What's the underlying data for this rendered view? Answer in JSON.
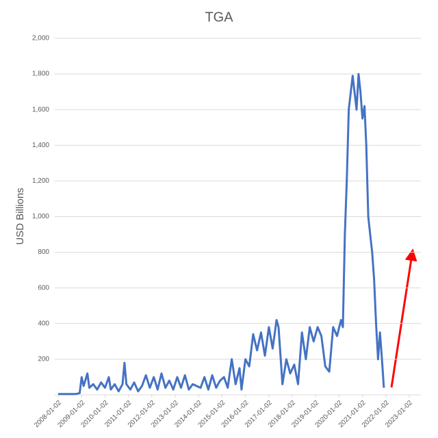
{
  "chart_data": {
    "type": "line",
    "title": "TGA",
    "y_label": "USD Billions",
    "x": [
      "2008-01-02",
      "2008-06-02",
      "2008-10-02",
      "2008-12-02",
      "2009-01-02",
      "2009-02-02",
      "2009-04-02",
      "2009-05-02",
      "2009-07-02",
      "2009-09-02",
      "2009-11-02",
      "2010-01-02",
      "2010-03-02",
      "2010-04-02",
      "2010-06-02",
      "2010-08-02",
      "2010-10-02",
      "2010-11-02",
      "2010-12-02",
      "2011-02-02",
      "2011-04-02",
      "2011-06-02",
      "2011-08-02",
      "2011-10-02",
      "2011-12-02",
      "2012-02-02",
      "2012-04-02",
      "2012-06-02",
      "2012-08-02",
      "2012-10-02",
      "2012-12-02",
      "2013-02-02",
      "2013-04-02",
      "2013-06-02",
      "2013-08-02",
      "2013-10-02",
      "2013-12-02",
      "2014-02-02",
      "2014-04-02",
      "2014-06-02",
      "2014-08-02",
      "2014-10-02",
      "2014-12-02",
      "2015-02-02",
      "2015-04-02",
      "2015-06-02",
      "2015-08-02",
      "2015-10-02",
      "2015-11-02",
      "2016-01-02",
      "2016-03-02",
      "2016-05-02",
      "2016-07-02",
      "2016-09-02",
      "2016-11-02",
      "2017-01-02",
      "2017-03-02",
      "2017-05-02",
      "2017-06-02",
      "2017-08-02",
      "2017-10-02",
      "2017-12-02",
      "2018-02-02",
      "2018-04-02",
      "2018-06-02",
      "2018-08-02",
      "2018-10-02",
      "2018-12-02",
      "2019-02-02",
      "2019-04-02",
      "2019-06-02",
      "2019-08-02",
      "2019-10-02",
      "2019-12-02",
      "2020-02-02",
      "2020-03-02",
      "2020-04-02",
      "2020-05-02",
      "2020-06-02",
      "2020-08-02",
      "2020-10-02",
      "2020-11-02",
      "2020-12-02",
      "2021-01-02",
      "2021-02-02",
      "2021-03-02",
      "2021-04-02",
      "2021-05-02",
      "2021-06-02",
      "2021-07-02",
      "2021-08-02",
      "2021-09-02",
      "2021-10-02",
      "2021-11-02",
      "2021-12-02"
    ],
    "series": [
      {
        "name": "TGA",
        "color": "#4472c4",
        "values": [
          5,
          5,
          5,
          10,
          100,
          50,
          120,
          40,
          60,
          30,
          70,
          40,
          100,
          30,
          60,
          20,
          60,
          180,
          60,
          30,
          70,
          20,
          50,
          110,
          40,
          100,
          30,
          120,
          40,
          80,
          30,
          100,
          40,
          110,
          30,
          60,
          50,
          40,
          100,
          30,
          110,
          40,
          80,
          100,
          40,
          200,
          60,
          150,
          30,
          200,
          160,
          340,
          250,
          350,
          220,
          380,
          260,
          420,
          380,
          60,
          200,
          120,
          170,
          60,
          350,
          200,
          380,
          300,
          380,
          330,
          160,
          130,
          380,
          330,
          420,
          380,
          900,
          1200,
          1600,
          1790,
          1600,
          1800,
          1700,
          1550,
          1620,
          1400,
          1000,
          900,
          800,
          650,
          400,
          200,
          350,
          200,
          40
        ]
      }
    ],
    "xlim": [
      "2008-01-02",
      "2023-01-02"
    ],
    "xticks": [
      "2008-01-02",
      "2009-01-02",
      "2010-01-02",
      "2011-01-02",
      "2012-01-02",
      "2013-01-02",
      "2014-01-02",
      "2015-01-02",
      "2016-01-02",
      "2017-01-02",
      "2018-01-02",
      "2019-01-02",
      "2020-01-02",
      "2021-01-02",
      "2022-01-02",
      "2023-01-02"
    ],
    "ylim": [
      0,
      2000
    ],
    "yticks": [
      200,
      400,
      600,
      800,
      {
        "value": 1000,
        "label": "1,000"
      },
      {
        "value": 1200,
        "label": "1,200"
      },
      {
        "value": 1400,
        "label": "1,400"
      },
      {
        "value": 1600,
        "label": "1,600"
      },
      {
        "value": 1800,
        "label": "1,800"
      },
      {
        "value": 2000,
        "label": "2,000"
      }
    ],
    "grid": true
  }
}
